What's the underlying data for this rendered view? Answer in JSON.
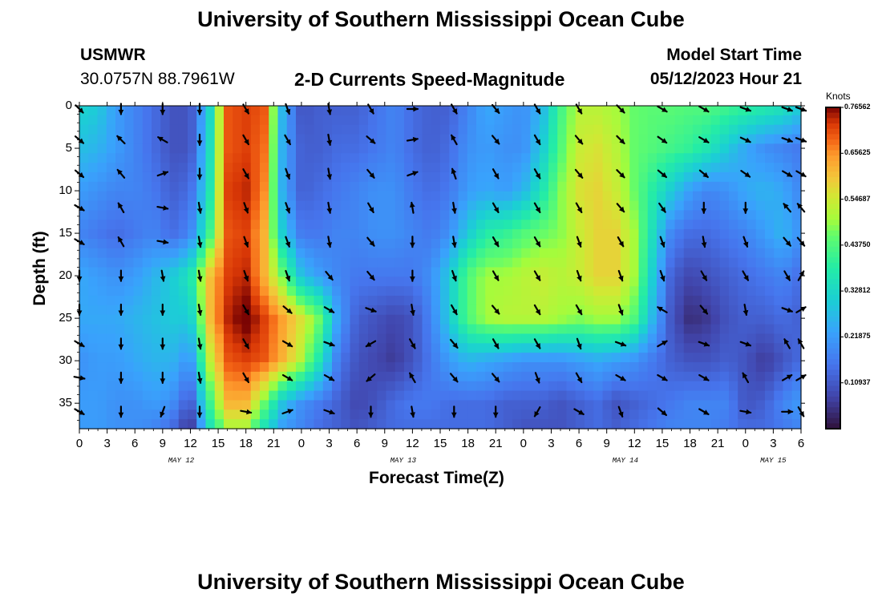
{
  "page": {
    "title": "University of Southern Mississippi Ocean Cube",
    "title_repeat": "University of Southern Mississippi Ocean Cube",
    "station_name": "USMWR",
    "station_coords": "30.0757N  88.7961W",
    "model_start_label": "Model Start Time",
    "model_start_value": "05/12/2023 Hour 21"
  },
  "chart_data": {
    "type": "heatmap",
    "title": "2-D Currents Speed-Magnitude",
    "xlabel": "Forecast Time(Z)",
    "ylabel": "Depth (ft)",
    "colorbar_label": "Knots",
    "colorbar_range": [
      0.0,
      0.765625
    ],
    "colorbar_ticks": [
      "0.76562",
      "0.65625",
      "0.54687",
      "0.43750",
      "0.32812",
      "0.21875",
      "0.10937"
    ],
    "colorbar_tick_values": [
      0.765625,
      0.65625,
      0.546875,
      0.4375,
      0.328125,
      0.21875,
      0.109375
    ],
    "x_range_hours": [
      0,
      78
    ],
    "y_range_ft": [
      0,
      38
    ],
    "x_ticks": [
      "0",
      "3",
      "6",
      "9",
      "12",
      "15",
      "18",
      "21",
      "0",
      "3",
      "6",
      "9",
      "12",
      "15",
      "18",
      "21",
      "0",
      "3",
      "6",
      "9",
      "12",
      "15",
      "18",
      "21",
      "0",
      "3",
      "6"
    ],
    "y_ticks": [
      "0",
      "5",
      "10",
      "15",
      "20",
      "25",
      "30",
      "35"
    ],
    "y_tick_values": [
      0,
      5,
      10,
      15,
      20,
      25,
      30,
      35
    ],
    "date_labels": [
      {
        "label": "MAY 12",
        "hour": 11
      },
      {
        "label": "MAY 13",
        "hour": 35
      },
      {
        "label": "MAY 14",
        "hour": 59
      },
      {
        "label": "MAY 15",
        "hour": 75
      }
    ],
    "speed_knots_rows": {
      "hours": [
        0,
        2,
        4,
        6,
        8,
        10,
        12,
        14,
        16,
        18,
        20,
        22,
        24,
        26,
        28,
        30,
        32,
        34,
        36,
        38,
        40,
        42,
        44,
        46,
        48,
        50,
        52,
        54,
        56,
        58,
        60,
        62,
        64,
        66,
        68,
        70,
        72,
        74,
        76,
        78
      ],
      "depths_ft": [
        0,
        5,
        10,
        15,
        20,
        25,
        30,
        35,
        38
      ],
      "values": [
        [
          0.32,
          0.3,
          0.22,
          0.18,
          0.14,
          0.1,
          0.1,
          0.3,
          0.7,
          0.72,
          0.7,
          0.25,
          0.1,
          0.12,
          0.12,
          0.12,
          0.15,
          0.18,
          0.14,
          0.12,
          0.12,
          0.18,
          0.24,
          0.22,
          0.2,
          0.26,
          0.42,
          0.52,
          0.52,
          0.5,
          0.46,
          0.45,
          0.45,
          0.44,
          0.44,
          0.42,
          0.4,
          0.38,
          0.36,
          0.3
        ],
        [
          0.28,
          0.26,
          0.22,
          0.18,
          0.14,
          0.1,
          0.1,
          0.32,
          0.7,
          0.72,
          0.68,
          0.24,
          0.12,
          0.12,
          0.14,
          0.14,
          0.16,
          0.18,
          0.14,
          0.12,
          0.14,
          0.2,
          0.22,
          0.2,
          0.2,
          0.3,
          0.44,
          0.54,
          0.56,
          0.52,
          0.46,
          0.44,
          0.42,
          0.4,
          0.36,
          0.3,
          0.24,
          0.2,
          0.18,
          0.16
        ],
        [
          0.22,
          0.2,
          0.18,
          0.18,
          0.16,
          0.12,
          0.14,
          0.34,
          0.72,
          0.74,
          0.66,
          0.24,
          0.12,
          0.14,
          0.16,
          0.18,
          0.2,
          0.2,
          0.16,
          0.14,
          0.16,
          0.22,
          0.24,
          0.22,
          0.26,
          0.36,
          0.48,
          0.56,
          0.58,
          0.54,
          0.46,
          0.38,
          0.3,
          0.22,
          0.18,
          0.2,
          0.24,
          0.26,
          0.24,
          0.18
        ],
        [
          0.18,
          0.16,
          0.14,
          0.16,
          0.18,
          0.14,
          0.18,
          0.4,
          0.7,
          0.72,
          0.62,
          0.3,
          0.16,
          0.16,
          0.18,
          0.18,
          0.2,
          0.2,
          0.18,
          0.16,
          0.2,
          0.3,
          0.38,
          0.4,
          0.44,
          0.46,
          0.48,
          0.54,
          0.58,
          0.58,
          0.5,
          0.34,
          0.18,
          0.14,
          0.14,
          0.16,
          0.18,
          0.22,
          0.26,
          0.2
        ],
        [
          0.24,
          0.22,
          0.2,
          0.22,
          0.26,
          0.3,
          0.36,
          0.6,
          0.72,
          0.74,
          0.62,
          0.46,
          0.28,
          0.22,
          0.18,
          0.16,
          0.16,
          0.16,
          0.16,
          0.2,
          0.3,
          0.44,
          0.5,
          0.5,
          0.52,
          0.54,
          0.52,
          0.54,
          0.58,
          0.58,
          0.5,
          0.3,
          0.12,
          0.08,
          0.1,
          0.12,
          0.14,
          0.16,
          0.18,
          0.14
        ],
        [
          0.24,
          0.24,
          0.24,
          0.26,
          0.28,
          0.3,
          0.3,
          0.6,
          0.74,
          0.78,
          0.72,
          0.64,
          0.56,
          0.46,
          0.22,
          0.12,
          0.1,
          0.08,
          0.1,
          0.18,
          0.3,
          0.44,
          0.5,
          0.52,
          0.52,
          0.52,
          0.5,
          0.48,
          0.5,
          0.5,
          0.44,
          0.26,
          0.1,
          0.04,
          0.06,
          0.1,
          0.12,
          0.12,
          0.14,
          0.12
        ],
        [
          0.2,
          0.22,
          0.22,
          0.24,
          0.26,
          0.26,
          0.2,
          0.52,
          0.7,
          0.72,
          0.7,
          0.62,
          0.52,
          0.36,
          0.16,
          0.1,
          0.08,
          0.06,
          0.1,
          0.16,
          0.22,
          0.26,
          0.24,
          0.22,
          0.2,
          0.2,
          0.2,
          0.22,
          0.24,
          0.22,
          0.2,
          0.16,
          0.12,
          0.1,
          0.1,
          0.12,
          0.1,
          0.06,
          0.1,
          0.14
        ],
        [
          0.22,
          0.22,
          0.2,
          0.2,
          0.22,
          0.2,
          0.1,
          0.4,
          0.62,
          0.62,
          0.46,
          0.28,
          0.2,
          0.16,
          0.12,
          0.08,
          0.1,
          0.14,
          0.16,
          0.16,
          0.14,
          0.14,
          0.14,
          0.12,
          0.12,
          0.12,
          0.1,
          0.12,
          0.14,
          0.1,
          0.12,
          0.14,
          0.16,
          0.18,
          0.18,
          0.18,
          0.1,
          0.12,
          0.18,
          0.22
        ],
        [
          0.22,
          0.22,
          0.2,
          0.2,
          0.18,
          0.14,
          0.04,
          0.34,
          0.5,
          0.5,
          0.34,
          0.22,
          0.18,
          0.14,
          0.12,
          0.1,
          0.12,
          0.14,
          0.14,
          0.14,
          0.14,
          0.14,
          0.14,
          0.12,
          0.1,
          0.1,
          0.1,
          0.12,
          0.14,
          0.12,
          0.14,
          0.16,
          0.18,
          0.18,
          0.18,
          0.16,
          0.14,
          0.14,
          0.16,
          0.18
        ]
      ]
    },
    "current_vectors": {
      "hours": [
        0,
        4.5,
        9,
        13,
        18,
        22.5,
        27,
        31.5,
        36,
        40.5,
        45,
        49.5,
        54,
        58.5,
        63,
        67.5,
        72,
        76.5,
        78
      ],
      "depths_ft": [
        0,
        4,
        8,
        12,
        16,
        20,
        24,
        28,
        32,
        36
      ],
      "direction_deg_rows": [
        [
          135,
          180,
          180,
          180,
          150,
          160,
          170,
          150,
          90,
          150,
          140,
          150,
          150,
          135,
          120,
          120,
          110,
          110,
          110
        ],
        [
          130,
          315,
          300,
          180,
          150,
          150,
          170,
          130,
          80,
          330,
          140,
          150,
          140,
          135,
          125,
          120,
          115,
          110,
          110
        ],
        [
          130,
          320,
          70,
          180,
          150,
          160,
          170,
          140,
          70,
          340,
          150,
          150,
          140,
          135,
          130,
          130,
          125,
          120,
          120
        ],
        [
          120,
          330,
          100,
          170,
          160,
          160,
          170,
          150,
          350,
          170,
          150,
          150,
          150,
          140,
          145,
          180,
          180,
          320,
          320
        ],
        [
          120,
          330,
          100,
          170,
          160,
          160,
          170,
          140,
          180,
          170,
          150,
          150,
          160,
          150,
          160,
          170,
          160,
          140,
          140
        ],
        [
          180,
          180,
          170,
          170,
          160,
          160,
          140,
          140,
          180,
          160,
          150,
          150,
          160,
          160,
          160,
          150,
          150,
          150,
          30
        ],
        [
          180,
          180,
          180,
          170,
          150,
          130,
          120,
          110,
          170,
          150,
          140,
          150,
          150,
          160,
          300,
          140,
          170,
          110,
          60
        ],
        [
          120,
          180,
          180,
          170,
          150,
          120,
          110,
          240,
          150,
          140,
          150,
          150,
          160,
          110,
          60,
          110,
          110,
          330,
          330
        ],
        [
          100,
          180,
          180,
          170,
          150,
          120,
          120,
          230,
          330,
          140,
          140,
          160,
          150,
          120,
          120,
          120,
          330,
          60,
          60
        ],
        [
          120,
          180,
          200,
          180,
          100,
          70,
          110,
          180,
          170,
          180,
          180,
          210,
          120,
          160,
          130,
          120,
          100,
          90,
          150
        ]
      ]
    }
  }
}
